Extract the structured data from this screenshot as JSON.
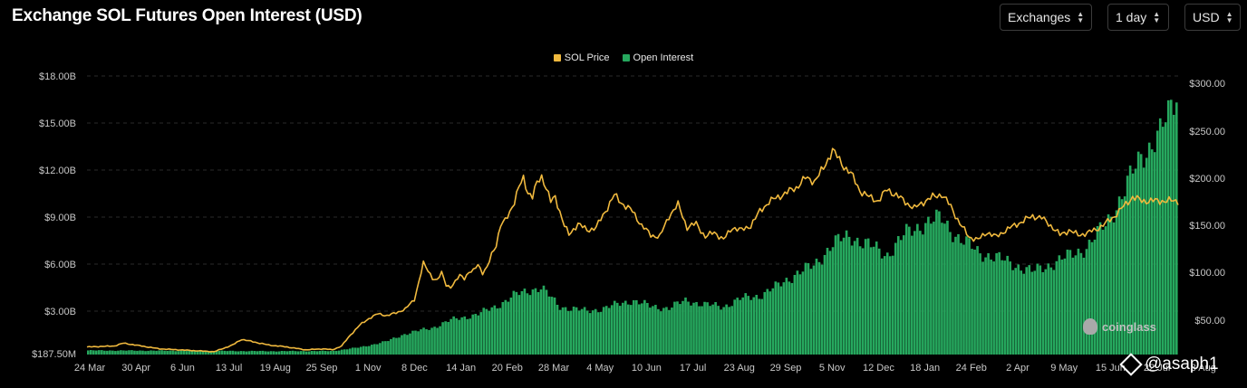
{
  "title": "Exchange SOL Futures Open Interest (USD)",
  "controls": {
    "exchanges_label": "Exchanges",
    "interval_label": "1 day",
    "currency_label": "USD"
  },
  "legend": {
    "price_label": "SOL Price",
    "oi_label": "Open Interest"
  },
  "colors": {
    "price": "#f0b93e",
    "oi": "#26a85e",
    "grid": "#2a2a2a",
    "background": "#000000"
  },
  "watermark": {
    "brand": "coinglass",
    "handle": "@asaph1"
  },
  "chart_data": {
    "type": "bar",
    "x_ticks": [
      "24 Mar",
      "30 Apr",
      "6 Jun",
      "13 Jul",
      "19 Aug",
      "25 Sep",
      "1 Nov",
      "8 Dec",
      "14 Jan",
      "20 Feb",
      "28 Mar",
      "4 May",
      "10 Jun",
      "17 Jul",
      "23 Aug",
      "29 Sep",
      "5 Nov",
      "12 Dec",
      "18 Jan",
      "24 Feb",
      "2 Apr",
      "9 May",
      "15 Jun",
      "22 Jul",
      "3 Aug"
    ],
    "y_left_ticks": [
      "$187.50M",
      "$3.00B",
      "$6.00B",
      "$9.00B",
      "$12.00B",
      "$15.00B",
      "$18.00B"
    ],
    "y_right_ticks": [
      "$50.00",
      "$100.00",
      "$150.00",
      "$200.00",
      "$250.00",
      "$300.00"
    ],
    "y_left_range": [
      187500000,
      18000000000
    ],
    "y_right_range": [
      0,
      300
    ],
    "series": [
      {
        "name": "SOL Price",
        "kind": "line",
        "axis": "right",
        "points": [
          [
            0,
            22
          ],
          [
            3,
            23
          ],
          [
            4,
            26
          ],
          [
            6,
            23
          ],
          [
            8,
            20
          ],
          [
            10,
            19
          ],
          [
            12,
            18
          ],
          [
            14,
            17
          ],
          [
            16,
            24
          ],
          [
            17,
            30
          ],
          [
            19,
            26
          ],
          [
            20,
            24
          ],
          [
            22,
            22
          ],
          [
            24,
            19
          ],
          [
            26,
            20
          ],
          [
            27,
            19
          ],
          [
            28,
            23
          ],
          [
            29,
            35
          ],
          [
            30,
            45
          ],
          [
            31,
            52
          ],
          [
            32,
            57
          ],
          [
            33,
            55
          ],
          [
            34,
            58
          ],
          [
            35,
            62
          ],
          [
            36,
            72
          ],
          [
            37,
            110
          ],
          [
            38,
            95
          ],
          [
            38.5,
            92
          ],
          [
            39,
            100
          ],
          [
            39.5,
            88
          ],
          [
            40,
            85
          ],
          [
            40.5,
            90
          ],
          [
            41,
            98
          ],
          [
            41.5,
            95
          ],
          [
            42,
            100
          ],
          [
            42.5,
            102
          ],
          [
            43,
            110
          ],
          [
            43.5,
            100
          ],
          [
            44,
            105
          ],
          [
            44.5,
            120
          ],
          [
            45,
            130
          ],
          [
            45.5,
            150
          ],
          [
            46,
            155
          ],
          [
            46.5,
            165
          ],
          [
            47,
            175
          ],
          [
            47.5,
            190
          ],
          [
            48,
            200
          ],
          [
            48.5,
            185
          ],
          [
            49,
            180
          ],
          [
            49.5,
            195
          ],
          [
            50,
            202
          ],
          [
            50.5,
            190
          ],
          [
            51,
            175
          ],
          [
            51.5,
            180
          ],
          [
            52,
            165
          ],
          [
            52.5,
            150
          ],
          [
            53,
            140
          ],
          [
            54,
            152
          ],
          [
            55,
            145
          ],
          [
            56,
            148
          ],
          [
            57,
            165
          ],
          [
            58,
            182
          ],
          [
            59,
            172
          ],
          [
            60,
            165
          ],
          [
            61,
            150
          ],
          [
            62,
            140
          ],
          [
            63,
            138
          ],
          [
            64,
            160
          ],
          [
            65,
            172
          ],
          [
            66,
            148
          ],
          [
            67,
            152
          ],
          [
            68,
            138
          ],
          [
            69,
            143
          ],
          [
            70,
            135
          ],
          [
            71,
            148
          ],
          [
            72,
            145
          ],
          [
            73,
            150
          ],
          [
            74,
            165
          ],
          [
            75,
            175
          ],
          [
            76,
            180
          ],
          [
            77,
            185
          ],
          [
            78,
            190
          ],
          [
            79,
            200
          ],
          [
            80,
            197
          ],
          [
            81,
            210
          ],
          [
            82,
            230
          ],
          [
            83,
            215
          ],
          [
            84,
            205
          ],
          [
            85,
            187
          ],
          [
            86,
            180
          ],
          [
            87,
            176
          ],
          [
            88,
            188
          ],
          [
            89,
            182
          ],
          [
            90,
            175
          ],
          [
            91,
            168
          ],
          [
            92,
            175
          ],
          [
            93,
            180
          ],
          [
            94,
            183
          ],
          [
            95,
            170
          ],
          [
            96,
            152
          ],
          [
            97,
            138
          ],
          [
            98,
            135
          ],
          [
            99,
            143
          ],
          [
            100,
            138
          ],
          [
            101,
            145
          ],
          [
            102,
            150
          ],
          [
            103,
            155
          ],
          [
            104,
            160
          ],
          [
            105,
            158
          ],
          [
            106,
            150
          ],
          [
            107,
            140
          ],
          [
            108,
            145
          ],
          [
            109,
            140
          ],
          [
            110,
            142
          ],
          [
            111,
            146
          ],
          [
            112,
            152
          ],
          [
            113,
            160
          ],
          [
            114,
            170
          ],
          [
            115,
            180
          ],
          [
            116,
            176
          ],
          [
            117,
            176
          ]
        ]
      },
      {
        "name": "Open Interest",
        "kind": "bar",
        "axis": "left",
        "points": [
          [
            0,
            0.4
          ],
          [
            10,
            0.38
          ],
          [
            20,
            0.35
          ],
          [
            27,
            0.36
          ],
          [
            30,
            0.6
          ],
          [
            33,
            1.0
          ],
          [
            35,
            1.5
          ],
          [
            38,
            1.9
          ],
          [
            40,
            2.4
          ],
          [
            43,
            2.8
          ],
          [
            45,
            3.3
          ],
          [
            47,
            4.0
          ],
          [
            49,
            4.4
          ],
          [
            50,
            4.5
          ],
          [
            52,
            3.3
          ],
          [
            55,
            3.0
          ],
          [
            57,
            3.2
          ],
          [
            60,
            3.7
          ],
          [
            62,
            3.3
          ],
          [
            64,
            3.2
          ],
          [
            66,
            3.7
          ],
          [
            68,
            3.4
          ],
          [
            70,
            3.3
          ],
          [
            72,
            3.8
          ],
          [
            74,
            4.0
          ],
          [
            76,
            4.6
          ],
          [
            78,
            5.4
          ],
          [
            80,
            5.9
          ],
          [
            82,
            7.3
          ],
          [
            84,
            7.8
          ],
          [
            86,
            7.2
          ],
          [
            88,
            6.6
          ],
          [
            90,
            7.9
          ],
          [
            92,
            8.6
          ],
          [
            94,
            8.9
          ],
          [
            96,
            7.6
          ],
          [
            98,
            6.8
          ],
          [
            100,
            6.4
          ],
          [
            102,
            6.0
          ],
          [
            104,
            5.5
          ],
          [
            106,
            6.0
          ],
          [
            108,
            6.5
          ],
          [
            110,
            7.1
          ],
          [
            112,
            8.5
          ],
          [
            114,
            10.5
          ],
          [
            116,
            13.0
          ],
          [
            118,
            14.2
          ],
          [
            119,
            15.6
          ],
          [
            120,
            17.3
          ]
        ]
      }
    ]
  }
}
